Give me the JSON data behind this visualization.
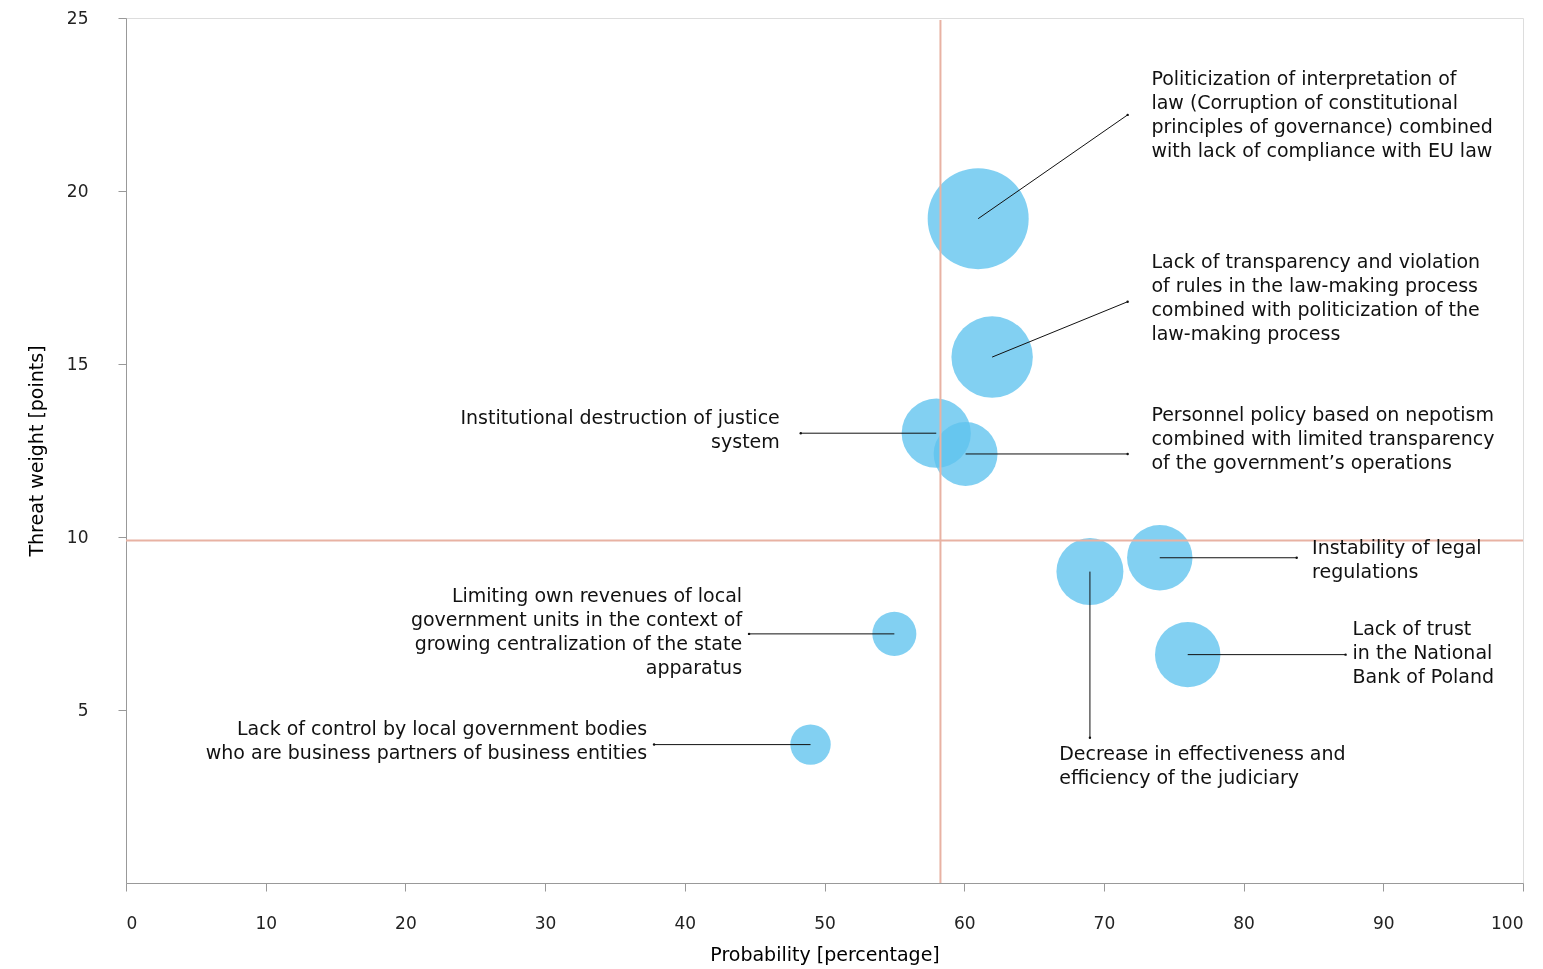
{
  "chart_data": {
    "type": "bubble",
    "xlabel": "Probability [percentage]",
    "ylabel": "Threat weight [points]",
    "xlim": [
      0,
      100
    ],
    "xticks": [
      0,
      10,
      20,
      30,
      40,
      50,
      60,
      70,
      80,
      90,
      100
    ],
    "ylim": [
      0,
      25
    ],
    "yticks": [
      5,
      10,
      15,
      20,
      25
    ],
    "grid": false,
    "series": [
      {
        "color": "#5fc3ee",
        "x": [
          61,
          62,
          58,
          60.1,
          74,
          69,
          76,
          55,
          49
        ],
        "values": [
          19.2,
          15.2,
          13.0,
          12.4,
          9.4,
          9.0,
          6.6,
          7.2,
          4.0
        ],
        "sizes": [
          1,
          0.65,
          0.47,
          0.4,
          0.42,
          0.44,
          0.42,
          0.19,
          0.16
        ]
      }
    ],
    "ref_lines": [
      {
        "axis": "x",
        "value": 58.3,
        "color": "#e8b2a3"
      },
      {
        "axis": "y",
        "value": 9.9,
        "color": "#e8b2a3"
      }
    ],
    "annotations": [
      {
        "text": "Politicization of interpretation of\nlaw (Corruption of constitutional\nprinciples of governance) combined\nwith lack of compliance with EU law",
        "x": 61,
        "y": 19.2
      },
      {
        "text": "Lack of transparency and violation\nof rules in the law-making process\ncombined with politicization of the\nlaw-making process",
        "x": 62,
        "y": 15.2
      },
      {
        "text": "Institutional destruction of justice\nsystem",
        "x": 58,
        "y": 13.0
      },
      {
        "text": "Personnel policy based on nepotism\ncombined with limited transparency\nof the government’s operations",
        "x": 60.1,
        "y": 12.4
      },
      {
        "text": "Instability of legal\nregulations",
        "x": 74,
        "y": 9.4
      },
      {
        "text": "Decrease in effectiveness and\nefficiency of the judiciary",
        "x": 69,
        "y": 9.0
      },
      {
        "text": "Lack of trust\nin the National\nBank of Poland",
        "x": 76,
        "y": 6.6
      },
      {
        "text": "Limiting own revenues of local\ngovernment units in the context of\ngrowing centralization of the state\napparatus",
        "x": 55,
        "y": 7.2
      },
      {
        "text": "Lack of control by local government bodies\nwho are business partners of business entities",
        "x": 49,
        "y": 4.0
      }
    ]
  }
}
